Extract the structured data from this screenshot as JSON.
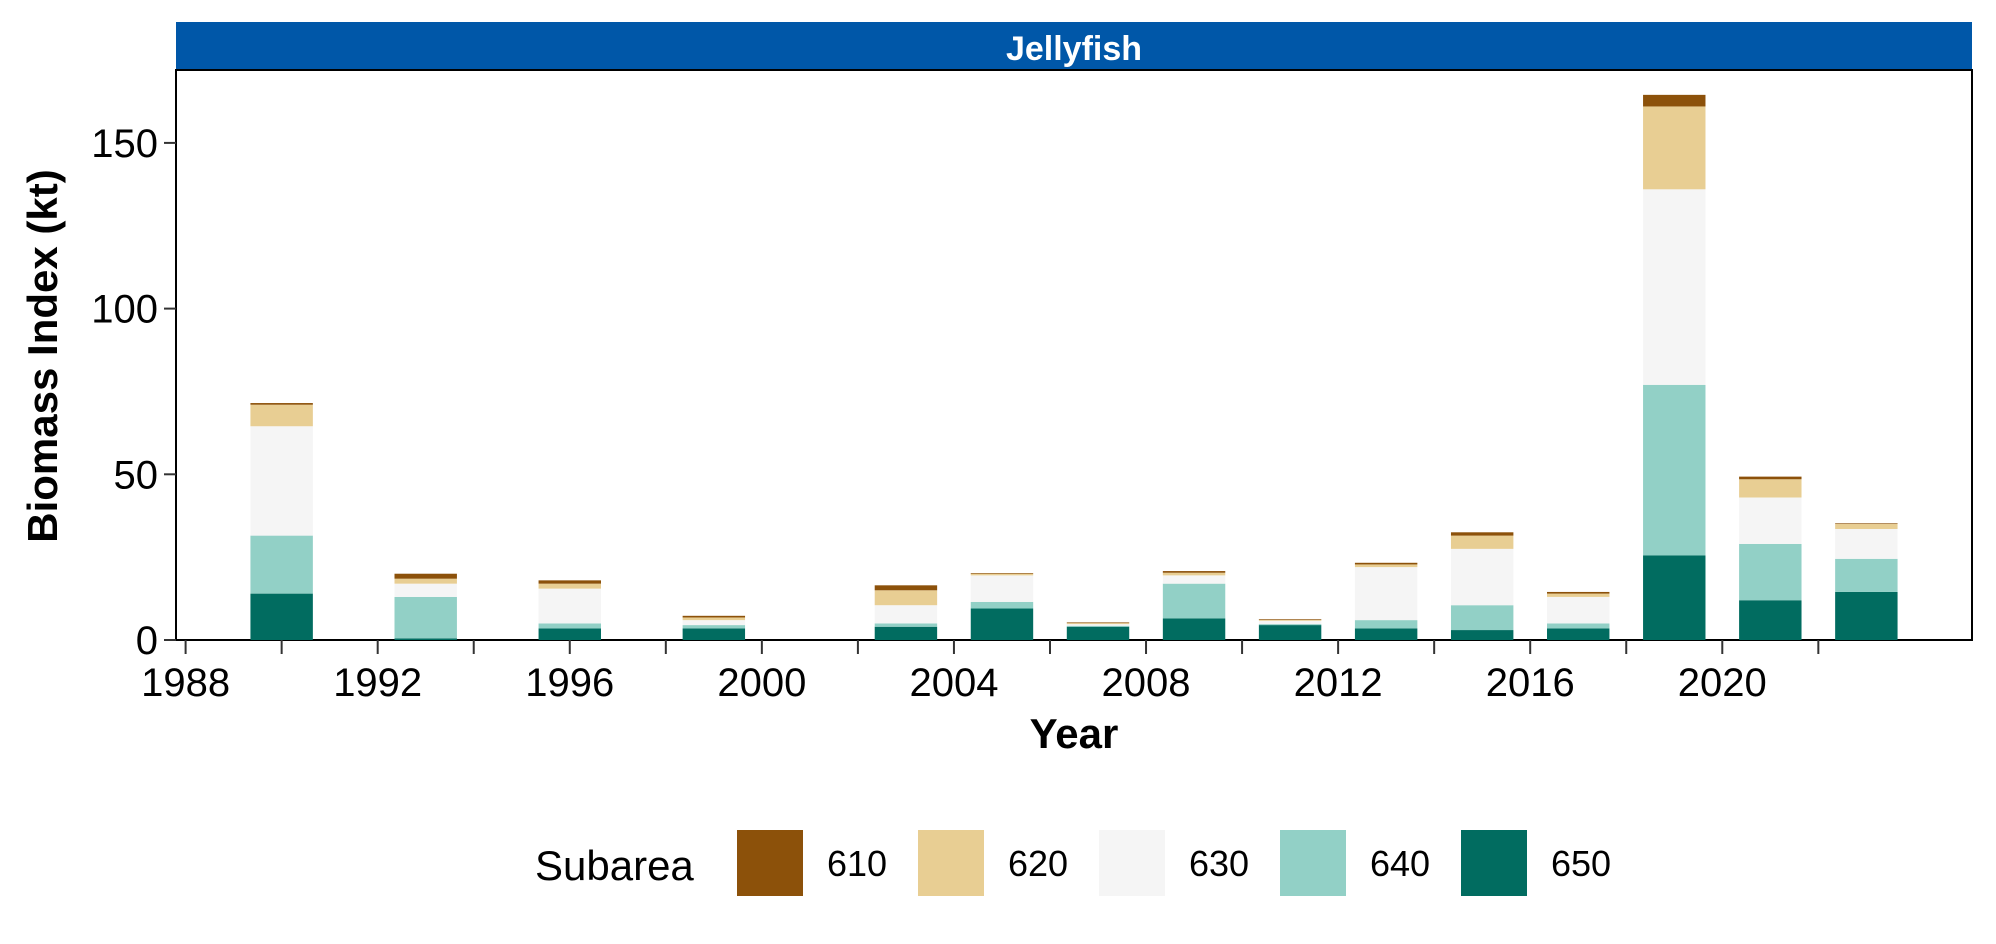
{
  "chart_data": {
    "type": "bar",
    "stacked": true,
    "title": "Jellyfish",
    "xlabel": "Year",
    "ylabel": "Biomass Index (kt)",
    "ylim": [
      0,
      172
    ],
    "yticks": [
      0,
      50,
      100,
      150
    ],
    "xlim": [
      1987.8,
      2025.2
    ],
    "xticks_major": [
      1988,
      1992,
      1996,
      2000,
      2004,
      2008,
      2012,
      2016,
      2020
    ],
    "xticks_minor": [
      1990,
      1994,
      1998,
      2002,
      2006,
      2010,
      2014,
      2018,
      2022
    ],
    "grid": false,
    "legend_title": "Subarea",
    "legend_position": "bottom",
    "x": [
      1990,
      1993,
      1996,
      1999,
      2003,
      2005,
      2007,
      2009,
      2011,
      2013,
      2015,
      2017,
      2019,
      2021,
      2023
    ],
    "series": [
      {
        "name": "610",
        "color": "#8C510A",
        "values": [
          0.5,
          1.5,
          1.0,
          0.5,
          1.5,
          0.2,
          0.2,
          0.5,
          0.2,
          0.5,
          1.0,
          0.5,
          3.5,
          0.8,
          0.2
        ]
      },
      {
        "name": "620",
        "color": "#E8CE93",
        "values": [
          6.5,
          1.5,
          1.5,
          0.8,
          4.5,
          0.5,
          0.3,
          0.8,
          0.3,
          0.8,
          4.0,
          1.0,
          25.0,
          5.5,
          1.5
        ]
      },
      {
        "name": "630",
        "color": "#F5F5F5",
        "values": [
          33.0,
          4.0,
          10.5,
          1.5,
          5.5,
          8.0,
          0.5,
          2.5,
          1.0,
          16.0,
          17.0,
          8.0,
          59.0,
          14.0,
          9.0
        ]
      },
      {
        "name": "640",
        "color": "#92D0C6",
        "values": [
          17.5,
          12.5,
          1.5,
          1.0,
          1.0,
          2.0,
          0.3,
          10.5,
          0.3,
          2.5,
          7.5,
          1.5,
          51.5,
          17.0,
          10.0
        ]
      },
      {
        "name": "650",
        "color": "#016C60",
        "values": [
          14.0,
          0.5,
          3.5,
          3.5,
          4.0,
          9.5,
          4.0,
          6.5,
          4.5,
          3.5,
          3.0,
          3.5,
          25.5,
          12.0,
          14.5
        ]
      }
    ]
  },
  "colors": {
    "strip_background": "#0057A8",
    "panel_border": "#000000"
  }
}
